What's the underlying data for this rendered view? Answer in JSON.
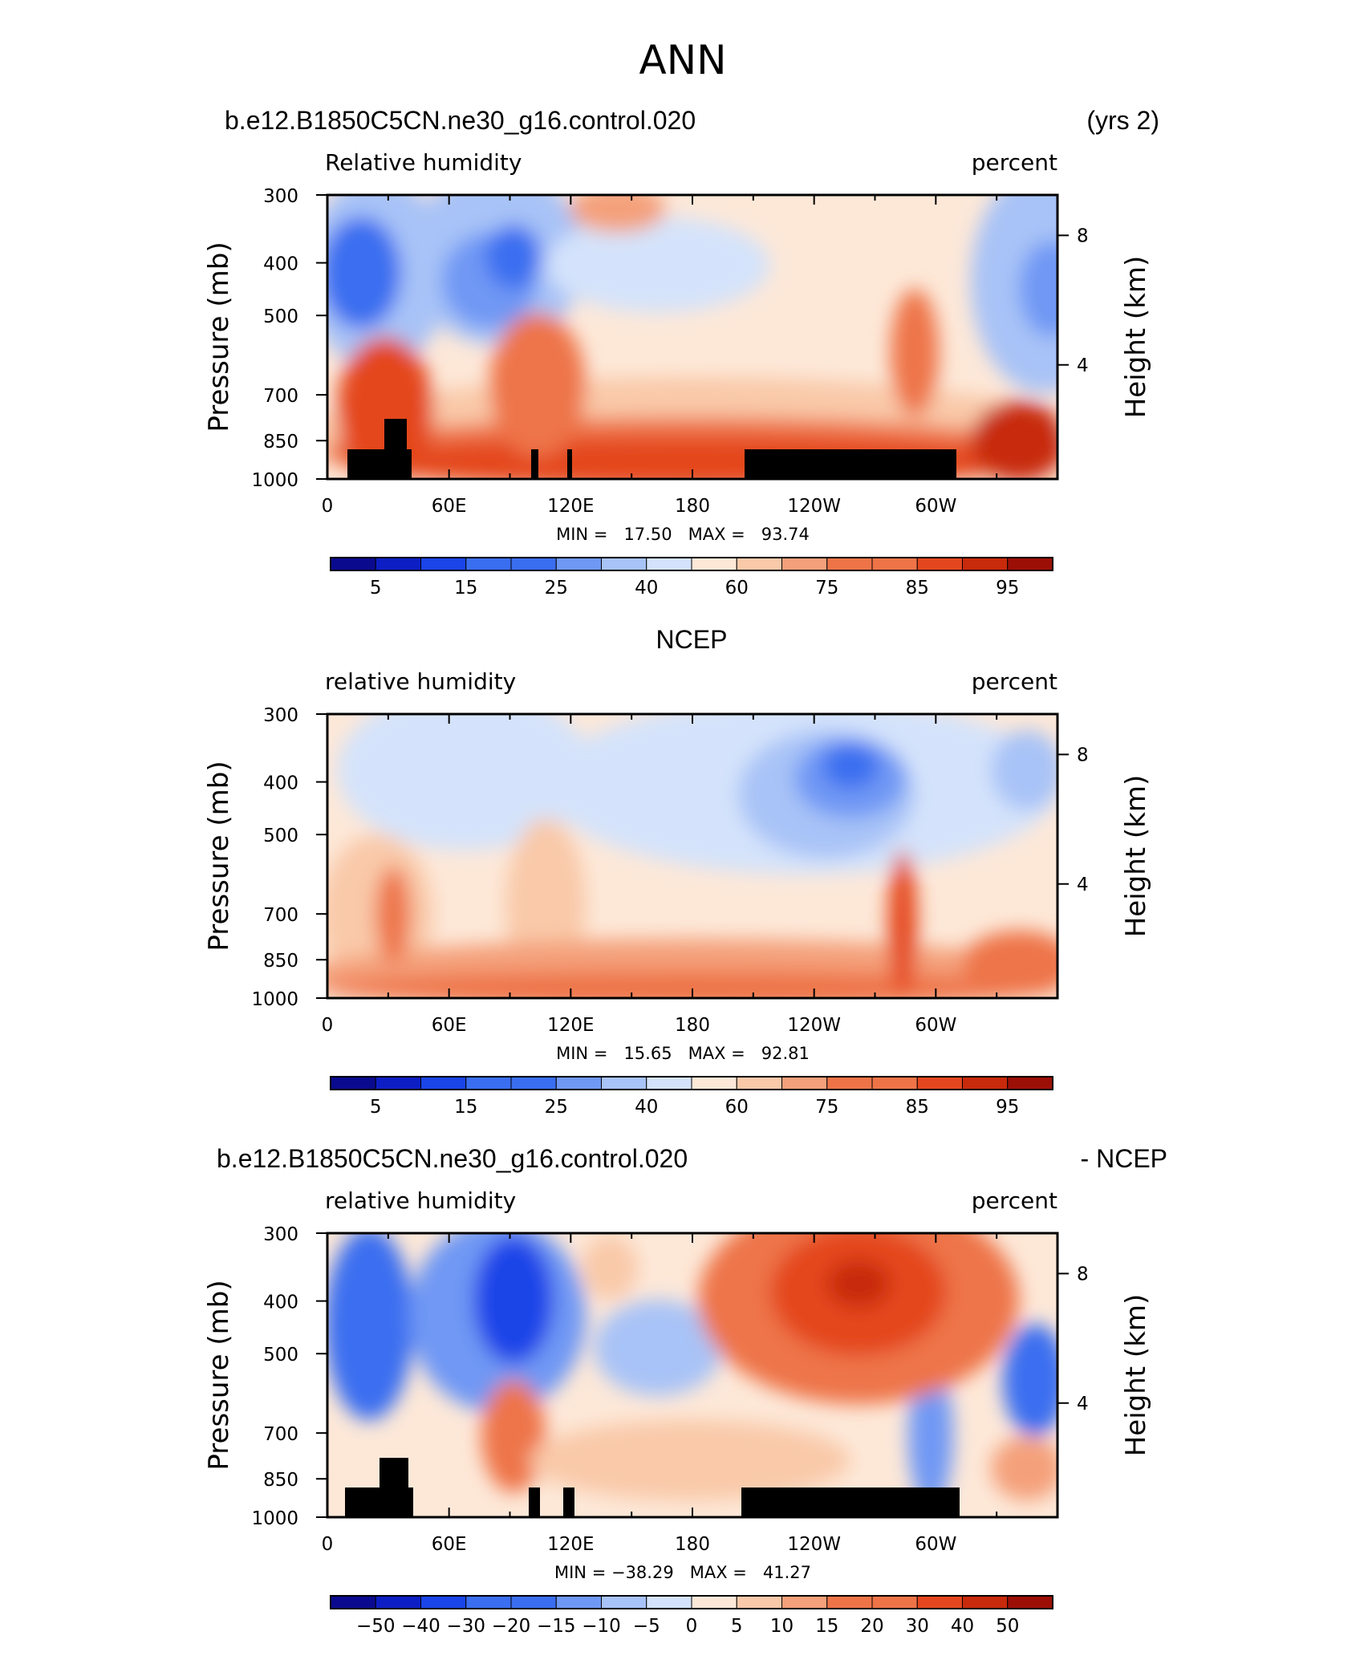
{
  "figure": {
    "title": "ANN"
  },
  "colors": {
    "rh_scale": [
      "#0a0a8f",
      "#0d1fc4",
      "#1a45e8",
      "#3a6ef0",
      "#6f98f4",
      "#a8c3f7",
      "#d4e3fb",
      "#fde8d8",
      "#f9c9a9",
      "#f4a07a",
      "#ee7448",
      "#e4471f",
      "#c82a0c",
      "#9c0f07"
    ],
    "diff_scale": [
      "#0a0a8f",
      "#0d1fc4",
      "#1a45e8",
      "#3a6ef0",
      "#6f98f4",
      "#a8c3f7",
      "#d4e3fb",
      "#fde8d8",
      "#f9c9a9",
      "#f4a07a",
      "#ee7448",
      "#e4471f",
      "#c82a0c",
      "#9c0f07"
    ],
    "terrain": "#000000"
  },
  "chart_data": [
    {
      "type": "heatmap",
      "panel_title_left": "b.e12.B1850C5CN.ne30_g16.control.020",
      "panel_title_right": "(yrs 2)",
      "left_label": "Relative humidity",
      "right_label": "percent",
      "ylabel": "Pressure (mb)",
      "ylabel2": "Height (km)",
      "xticks": [
        "0",
        "60E",
        "120E",
        "180",
        "120W",
        "60W"
      ],
      "yticks": [
        "300",
        "400",
        "500",
        "700",
        "850",
        "1000"
      ],
      "yticks2": [
        "8",
        "4"
      ],
      "stats": "MIN =   17.50   MAX =   93.74",
      "colorbar_labels": [
        "5",
        "15",
        "25",
        "40",
        "60",
        "75",
        "85",
        "95"
      ]
    },
    {
      "type": "heatmap",
      "panel_title_center": "NCEP",
      "left_label": "relative humidity",
      "right_label": "percent",
      "ylabel": "Pressure (mb)",
      "ylabel2": "Height (km)",
      "xticks": [
        "0",
        "60E",
        "120E",
        "180",
        "120W",
        "60W"
      ],
      "yticks": [
        "300",
        "400",
        "500",
        "700",
        "850",
        "1000"
      ],
      "yticks2": [
        "8",
        "4"
      ],
      "stats": "MIN =   15.65   MAX =   92.81",
      "colorbar_labels": [
        "5",
        "15",
        "25",
        "40",
        "60",
        "75",
        "85",
        "95"
      ]
    },
    {
      "type": "heatmap",
      "panel_title_left": "b.e12.B1850C5CN.ne30_g16.control.020",
      "panel_title_right": "- NCEP",
      "left_label": "relative humidity",
      "right_label": "percent",
      "ylabel": "Pressure (mb)",
      "ylabel2": "Height (km)",
      "xticks": [
        "0",
        "60E",
        "120E",
        "180",
        "120W",
        "60W"
      ],
      "yticks": [
        "300",
        "400",
        "500",
        "700",
        "850",
        "1000"
      ],
      "yticks2": [
        "8",
        "4"
      ],
      "stats": "MIN = −38.29   MAX =   41.27",
      "colorbar_labels": [
        "−50",
        "−40",
        "−30",
        "−20",
        "−15",
        "−10",
        "−5",
        "0",
        "5",
        "10",
        "15",
        "20",
        "30",
        "40",
        "50"
      ]
    }
  ]
}
